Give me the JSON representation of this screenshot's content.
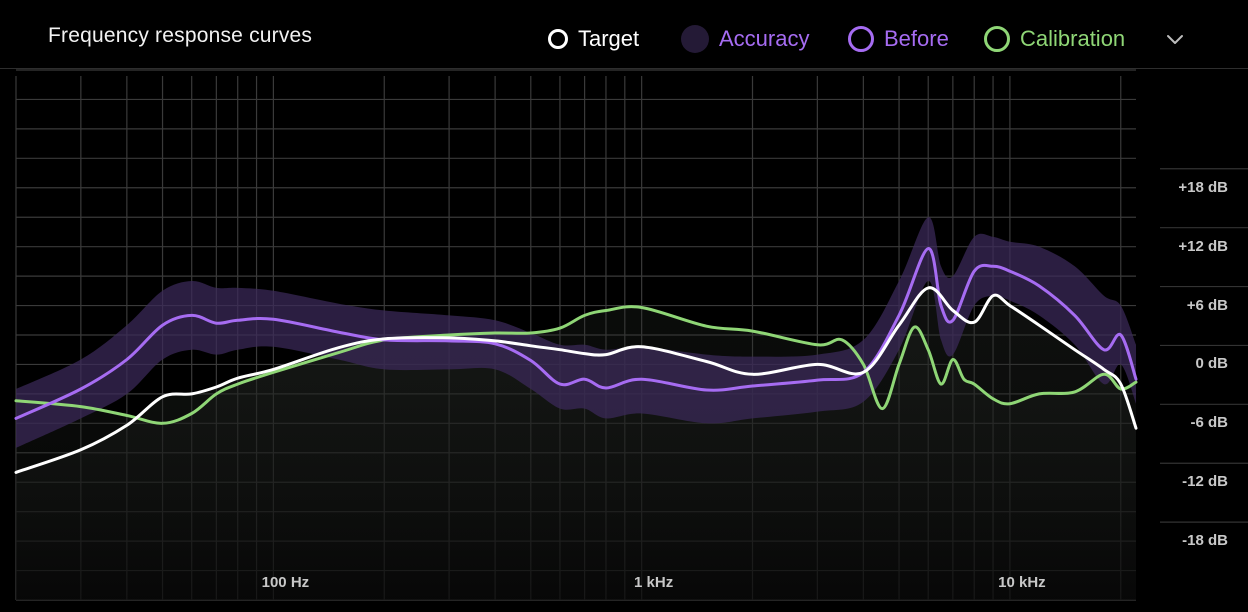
{
  "header": {
    "title": "Frequency response curves",
    "legend": {
      "target": "Target",
      "accuracy": "Accuracy",
      "before": "Before",
      "calibration": "Calibration"
    },
    "dropdown_icon": "chevron-down-icon"
  },
  "colors": {
    "background": "#000000",
    "grid": "#3a3a3a",
    "target": "#ffffff",
    "before": "#a66cf2",
    "accuracy_band": "#3b2a5a",
    "calibration": "#8fd676"
  },
  "chart_data": {
    "type": "line",
    "title": "Frequency response curves",
    "xscale": "log",
    "xlim": [
      20,
      22000
    ],
    "ylim": [
      -24,
      30
    ],
    "grid": true,
    "legend_position": "top",
    "x_ticks": [
      {
        "value": 100,
        "label": "100 Hz"
      },
      {
        "value": 1000,
        "label": "1 kHz"
      },
      {
        "value": 10000,
        "label": "10 kHz"
      }
    ],
    "y_ticks": [
      {
        "value": 18,
        "label": "+18 dB"
      },
      {
        "value": 12,
        "label": "+12 dB"
      },
      {
        "value": 6,
        "label": "+6 dB"
      },
      {
        "value": 0,
        "label": "0 dB"
      },
      {
        "value": -6,
        "label": "-6 dB"
      },
      {
        "value": -12,
        "label": "-12 dB"
      },
      {
        "value": -18,
        "label": "-18 dB"
      }
    ],
    "series": [
      {
        "name": "Target",
        "x": [
          20,
          30,
          40,
          50,
          60,
          70,
          80,
          100,
          150,
          200,
          300,
          400,
          500,
          600,
          700,
          800,
          1000,
          1500,
          2000,
          3000,
          4000,
          5000,
          6000,
          7000,
          8000,
          9000,
          10000,
          12000,
          15000,
          18000,
          20000,
          22000
        ],
        "y": [
          -11,
          -8.7,
          -6.2,
          -3.3,
          -3,
          -2.3,
          -1.4,
          -0.5,
          1.7,
          2.6,
          2.7,
          2.4,
          1.9,
          1.5,
          1.1,
          1.0,
          1.8,
          0.3,
          -1.0,
          0.0,
          -0.8,
          4.0,
          7.8,
          5.5,
          4.3,
          7.0,
          6.0,
          4.0,
          1.5,
          -0.5,
          -2.0,
          -6.5
        ]
      },
      {
        "name": "Before",
        "x": [
          20,
          30,
          40,
          50,
          60,
          70,
          80,
          100,
          150,
          200,
          300,
          400,
          500,
          600,
          700,
          800,
          1000,
          1500,
          2000,
          3000,
          4000,
          5000,
          6000,
          6500,
          7000,
          8000,
          9000,
          10000,
          12000,
          15000,
          18000,
          20000,
          22000
        ],
        "y": [
          -5.5,
          -2.5,
          0.5,
          4,
          5,
          4.2,
          4.5,
          4.6,
          3.3,
          2.5,
          2.4,
          2.1,
          0.4,
          -2.0,
          -1.5,
          -2.4,
          -1.5,
          -2.6,
          -2.2,
          -1.6,
          -0.8,
          5.0,
          11.8,
          6.0,
          4.5,
          9.5,
          10.0,
          9.5,
          8.0,
          5.0,
          1.5,
          3.0,
          -1.5
        ]
      },
      {
        "name": "Calibration",
        "x": [
          20,
          30,
          40,
          50,
          60,
          70,
          80,
          100,
          150,
          200,
          300,
          400,
          500,
          600,
          700,
          800,
          1000,
          1500,
          2000,
          3000,
          3500,
          4000,
          4500,
          5000,
          5500,
          6000,
          6500,
          7000,
          7500,
          8000,
          9000,
          10000,
          12000,
          15000,
          18000,
          20000,
          22000
        ],
        "y": [
          -3.7,
          -4.3,
          -5.2,
          -6,
          -5,
          -3,
          -2,
          -0.8,
          1.2,
          2.5,
          3.0,
          3.2,
          3.2,
          3.7,
          5.0,
          5.5,
          5.8,
          3.9,
          3.4,
          2.0,
          2.5,
          0.0,
          -4.5,
          0.0,
          3.8,
          1.5,
          -2.0,
          0.5,
          -1.5,
          -2.0,
          -3.5,
          -4.0,
          -3.0,
          -2.8,
          -1.0,
          -2.5,
          -1.8
        ]
      }
    ],
    "accuracy_band": {
      "name": "Accuracy",
      "x": [
        20,
        30,
        40,
        50,
        60,
        70,
        80,
        100,
        150,
        200,
        300,
        400,
        500,
        600,
        700,
        800,
        1000,
        1500,
        2000,
        3000,
        4000,
        5000,
        6000,
        6500,
        7000,
        8000,
        9000,
        10000,
        12000,
        15000,
        18000,
        20000,
        22000
      ],
      "upper": [
        -2.5,
        0.5,
        4.0,
        7.5,
        8.5,
        7.8,
        7.8,
        7.5,
        6.2,
        5.5,
        5.0,
        4.5,
        3.2,
        2.0,
        2.0,
        1.5,
        1.8,
        1.0,
        0.8,
        1.0,
        2.5,
        8.5,
        15.0,
        10.0,
        9.0,
        13.0,
        13.0,
        12.5,
        12.0,
        10.0,
        7.0,
        6.0,
        2.0
      ],
      "lower": [
        -8.5,
        -5.5,
        -3.0,
        0.5,
        1.5,
        1.0,
        1.5,
        1.8,
        0.5,
        -0.5,
        -0.5,
        -0.5,
        -2.5,
        -4.5,
        -4.5,
        -5.5,
        -5.0,
        -6.0,
        -5.5,
        -4.8,
        -3.8,
        1.5,
        8.5,
        2.5,
        1.0,
        6.0,
        7.0,
        6.5,
        5.0,
        2.0,
        -2.0,
        0.0,
        -4.0
      ]
    }
  }
}
